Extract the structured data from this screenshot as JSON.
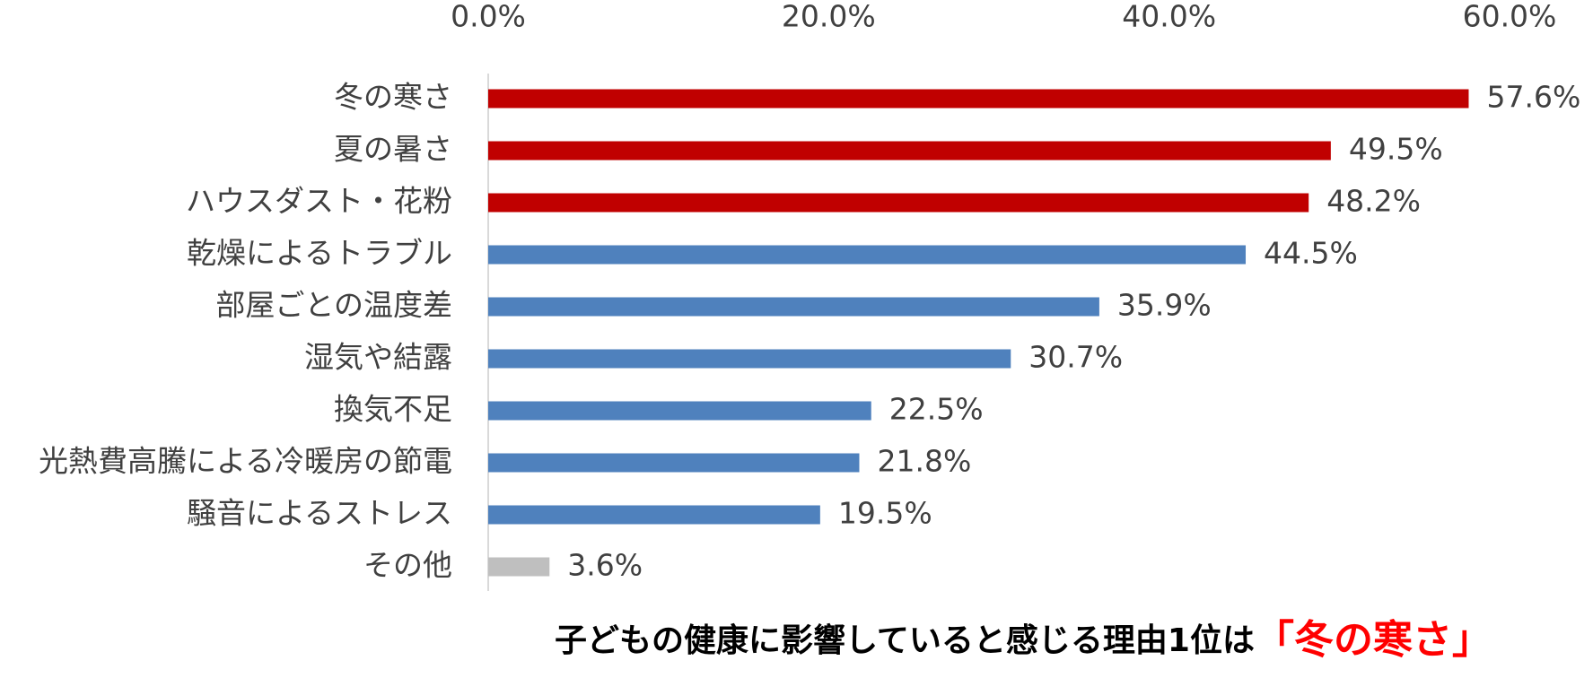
{
  "chart_data": {
    "type": "bar",
    "orientation": "horizontal",
    "categories": [
      "冬の寒さ",
      "夏の暑さ",
      "ハウスダスト・花粉",
      "乾燥によるトラブル",
      "部屋ごとの温度差",
      "湿気や結露",
      "換気不足",
      "光熱費高騰による冷暖房の節電",
      "騒音によるストレス",
      "その他"
    ],
    "values": [
      57.6,
      49.5,
      48.2,
      44.5,
      35.9,
      30.7,
      22.5,
      21.8,
      19.5,
      3.6
    ],
    "value_labels": [
      "57.6%",
      "49.5%",
      "48.2%",
      "44.5%",
      "35.9%",
      "30.7%",
      "22.5%",
      "21.8%",
      "19.5%",
      "3.6%"
    ],
    "colors": [
      "#c00000",
      "#c00000",
      "#c00000",
      "#4f81bd",
      "#4f81bd",
      "#4f81bd",
      "#4f81bd",
      "#4f81bd",
      "#4f81bd",
      "#bfbfbf"
    ],
    "xlim": [
      0,
      60
    ],
    "xticks": [
      {
        "value": 0,
        "label": "0.0%"
      },
      {
        "value": 20,
        "label": "20.0%"
      },
      {
        "value": 40,
        "label": "40.0%"
      },
      {
        "value": 60,
        "label": "60.0%"
      }
    ],
    "grid": false,
    "caption": "子どもの健康に影響していると感じる理由1位は",
    "caption_highlight": "「冬の寒さ」"
  }
}
